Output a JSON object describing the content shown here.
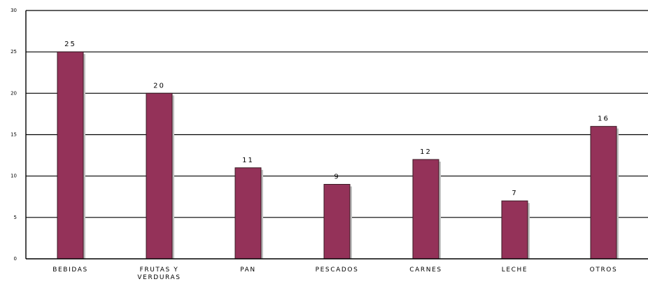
{
  "chart_data": {
    "type": "bar",
    "categories": [
      "BEBIDAS",
      "FRUTAS Y\nVERDURAS",
      "PAN",
      "PESCADOS",
      "CARNES",
      "LECHE",
      "OTROS"
    ],
    "values": [
      25,
      20,
      11,
      9,
      12,
      7,
      16
    ],
    "data_labels": [
      "25",
      "20",
      "11",
      "9",
      "12",
      "7",
      "16"
    ],
    "title": "",
    "xlabel": "",
    "ylabel": "",
    "ylim": [
      0,
      30
    ],
    "yticks": [
      0,
      5,
      10,
      15,
      20,
      25,
      30
    ],
    "ytick_labels": [
      "0",
      "5",
      "10",
      "15",
      "20",
      "25",
      "30"
    ],
    "grid": true,
    "legend": "none",
    "bar_color": "#943259"
  }
}
